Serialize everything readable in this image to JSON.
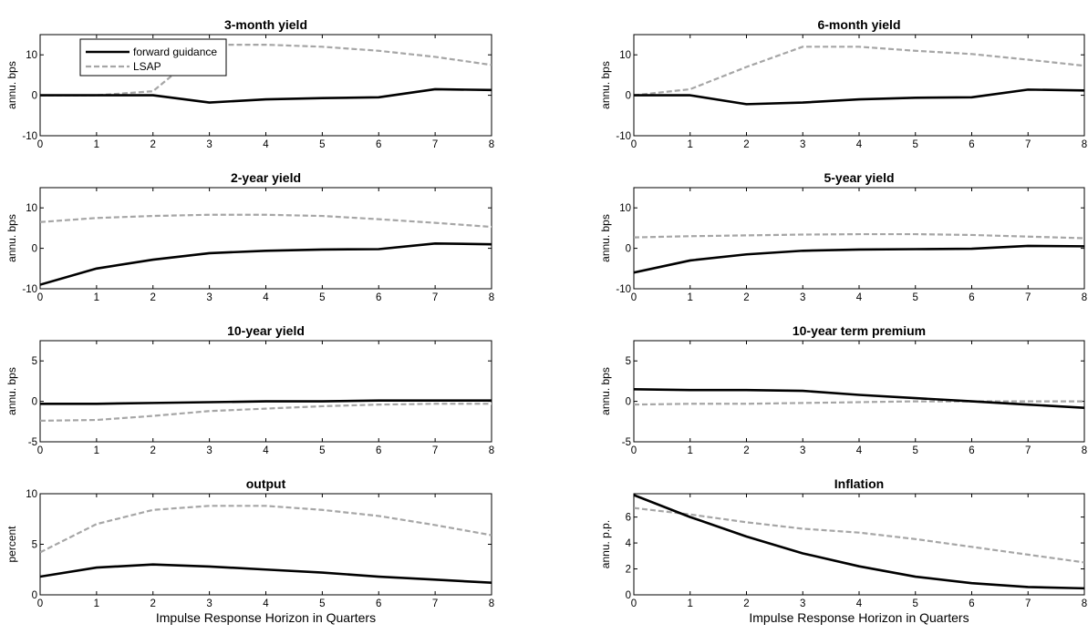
{
  "chart_data": [
    {
      "type": "line",
      "title": "3-month yield",
      "ylabel": "annu. bps",
      "xlabel": "",
      "x": [
        0,
        1,
        2,
        3,
        4,
        5,
        6,
        7,
        8
      ],
      "xlim": [
        0,
        8
      ],
      "ylim": [
        -10,
        15
      ],
      "yticks": [
        -10,
        0,
        10
      ],
      "legend": "top-left",
      "series": [
        {
          "name": "forward guidance",
          "values": [
            0,
            0,
            0,
            -1.8,
            -1,
            -0.7,
            -0.5,
            1.5,
            1.3
          ]
        },
        {
          "name": "LSAP",
          "values": [
            0,
            0,
            1,
            12.5,
            12.5,
            12,
            11,
            9.5,
            7.5
          ]
        }
      ]
    },
    {
      "type": "line",
      "title": "6-month yield",
      "ylabel": "annu. bps",
      "xlabel": "",
      "x": [
        0,
        1,
        2,
        3,
        4,
        5,
        6,
        7,
        8
      ],
      "xlim": [
        0,
        8
      ],
      "ylim": [
        -10,
        15
      ],
      "yticks": [
        -10,
        0,
        10
      ],
      "series": [
        {
          "values": [
            0,
            0,
            -2.2,
            -1.8,
            -1,
            -0.6,
            -0.5,
            1.4,
            1.2
          ]
        },
        {
          "values": [
            0,
            1.5,
            7,
            12,
            12,
            11,
            10.2,
            8.8,
            7.3
          ]
        }
      ]
    },
    {
      "type": "line",
      "title": "2-year yield",
      "ylabel": "annu. bps",
      "xlabel": "",
      "x": [
        0,
        1,
        2,
        3,
        4,
        5,
        6,
        7,
        8
      ],
      "xlim": [
        0,
        8
      ],
      "ylim": [
        -10,
        15
      ],
      "yticks": [
        -10,
        0,
        10
      ],
      "series": [
        {
          "values": [
            -9,
            -5,
            -2.8,
            -1.2,
            -0.6,
            -0.3,
            -0.2,
            1.2,
            1
          ]
        },
        {
          "values": [
            6.5,
            7.5,
            8,
            8.3,
            8.3,
            8,
            7.2,
            6.3,
            5.3
          ]
        }
      ]
    },
    {
      "type": "line",
      "title": "5-year yield",
      "ylabel": "annu. bps",
      "xlabel": "",
      "x": [
        0,
        1,
        2,
        3,
        4,
        5,
        6,
        7,
        8
      ],
      "xlim": [
        0,
        8
      ],
      "ylim": [
        -10,
        15
      ],
      "yticks": [
        -10,
        0,
        10
      ],
      "series": [
        {
          "values": [
            -6,
            -3,
            -1.5,
            -0.6,
            -0.3,
            -0.2,
            -0.1,
            0.6,
            0.5
          ]
        },
        {
          "values": [
            2.7,
            3,
            3.2,
            3.4,
            3.5,
            3.5,
            3.3,
            2.9,
            2.5
          ]
        }
      ]
    },
    {
      "type": "line",
      "title": "10-year yield",
      "ylabel": "annu. bps",
      "xlabel": "",
      "x": [
        0,
        1,
        2,
        3,
        4,
        5,
        6,
        7,
        8
      ],
      "xlim": [
        0,
        8
      ],
      "ylim": [
        -5,
        7.5
      ],
      "yticks": [
        -5,
        0,
        5
      ],
      "series": [
        {
          "values": [
            -0.3,
            -0.3,
            -0.2,
            -0.1,
            0,
            0,
            0.1,
            0.1,
            0.1
          ]
        },
        {
          "values": [
            -2.4,
            -2.3,
            -1.8,
            -1.2,
            -0.9,
            -0.6,
            -0.4,
            -0.3,
            -0.3
          ]
        }
      ]
    },
    {
      "type": "line",
      "title": "10-year term premium",
      "ylabel": "annu. bps",
      "xlabel": "",
      "x": [
        0,
        1,
        2,
        3,
        4,
        5,
        6,
        7,
        8
      ],
      "xlim": [
        0,
        8
      ],
      "ylim": [
        -5,
        7.5
      ],
      "yticks": [
        -5,
        0,
        5
      ],
      "series": [
        {
          "values": [
            1.5,
            1.4,
            1.4,
            1.3,
            0.8,
            0.4,
            0,
            -0.4,
            -0.8
          ]
        },
        {
          "values": [
            -0.4,
            -0.3,
            -0.3,
            -0.2,
            -0.1,
            0,
            0,
            0,
            0
          ]
        }
      ]
    },
    {
      "type": "line",
      "title": "output",
      "ylabel": "percent",
      "xlabel": "Impulse Response Horizon in Quarters",
      "x": [
        0,
        1,
        2,
        3,
        4,
        5,
        6,
        7,
        8
      ],
      "xlim": [
        0,
        8
      ],
      "ylim": [
        0,
        10
      ],
      "yticks": [
        0,
        5,
        10
      ],
      "series": [
        {
          "values": [
            1.8,
            2.7,
            3,
            2.8,
            2.5,
            2.2,
            1.8,
            1.5,
            1.2
          ]
        },
        {
          "values": [
            4.2,
            7,
            8.4,
            8.8,
            8.8,
            8.4,
            7.8,
            6.9,
            5.9
          ]
        }
      ]
    },
    {
      "type": "line",
      "title": "Inflation",
      "ylabel": "annu. p.p.",
      "xlabel": "Impulse Response Horizon in Quarters",
      "x": [
        0,
        1,
        2,
        3,
        4,
        5,
        6,
        7,
        8
      ],
      "xlim": [
        0,
        8
      ],
      "ylim": [
        0,
        7.8
      ],
      "yticks": [
        0,
        2,
        4,
        6
      ],
      "series": [
        {
          "values": [
            7.7,
            6,
            4.5,
            3.2,
            2.2,
            1.4,
            0.9,
            0.6,
            0.5
          ]
        },
        {
          "values": [
            6.7,
            6.2,
            5.6,
            5.1,
            4.8,
            4.3,
            3.7,
            3.1,
            2.5
          ]
        }
      ]
    }
  ],
  "legend": {
    "entries": [
      {
        "name": "forward guidance",
        "color": "#000000",
        "style": "solid"
      },
      {
        "name": "LSAP",
        "color": "#a6a6a6",
        "style": "dashed"
      }
    ]
  },
  "colors": {
    "forward_guidance": "#000000",
    "lsap": "#a6a6a6",
    "axes": "#000000",
    "background": "#ffffff"
  }
}
